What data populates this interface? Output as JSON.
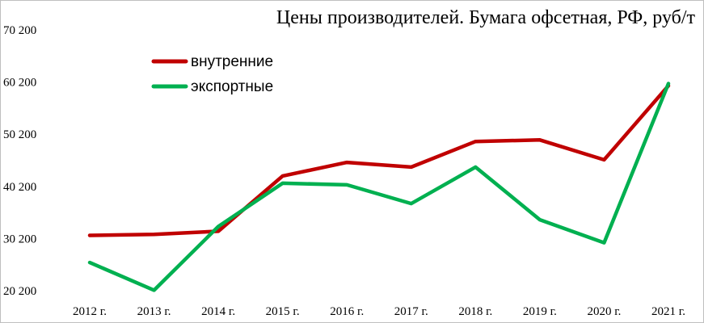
{
  "chart_data": {
    "type": "line",
    "title": "Цены производителей.  Бумага офсетная, РФ, руб/т",
    "xlabel": "",
    "ylabel": "",
    "categories": [
      "2012 г.",
      "2013 г.",
      "2014 г.",
      "2015 г.",
      "2016 г.",
      "2017 г.",
      "2018 г.",
      "2019 г.",
      "2020 г.",
      "2021 г."
    ],
    "yticks": [
      "20 200",
      "30 200",
      "40 200",
      "50 200",
      "60 200",
      "70 200"
    ],
    "ylim": [
      20200,
      70200
    ],
    "grid": false,
    "legend_position": "top-left",
    "series": [
      {
        "name": "внутренние",
        "color": "#c00000",
        "values": [
          30800,
          31000,
          31600,
          42200,
          44800,
          43900,
          48800,
          49100,
          45300,
          59500
        ]
      },
      {
        "name": "экспортные",
        "color": "#00b050",
        "values": [
          25600,
          20300,
          32500,
          40800,
          40500,
          36900,
          43900,
          33800,
          29400,
          59900
        ]
      }
    ]
  }
}
